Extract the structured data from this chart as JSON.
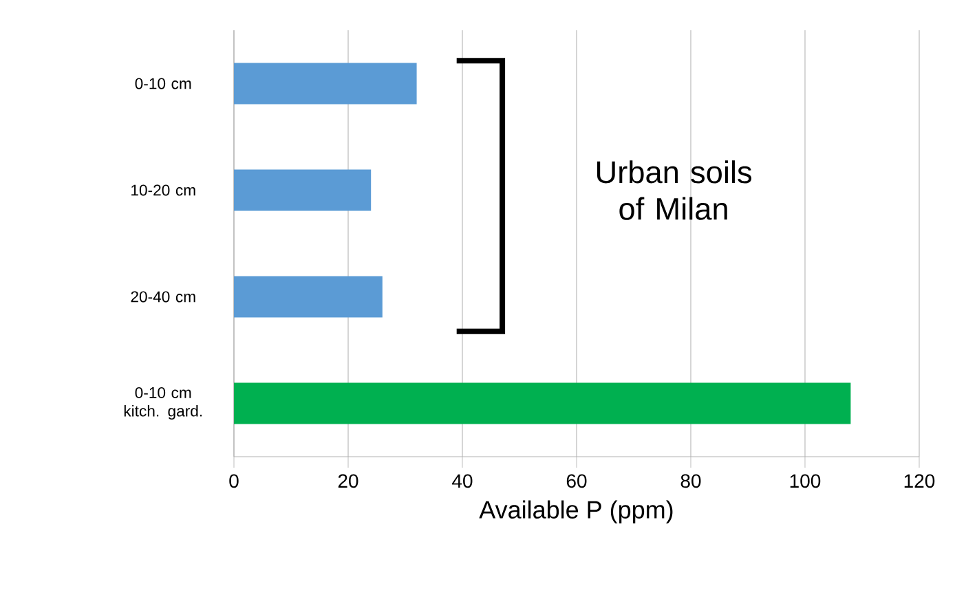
{
  "chart_data": {
    "type": "bar",
    "orientation": "horizontal",
    "categories": [
      "0-10 cm",
      "10-20 cm",
      "20-40 cm",
      "0-10 cm kitch. gard."
    ],
    "values": [
      32,
      24,
      26,
      108
    ],
    "colors": [
      "#5b9bd5",
      "#5b9bd5",
      "#5b9bd5",
      "#00b050"
    ],
    "xlabel": "Available P (ppm)",
    "xlim": [
      0,
      120
    ],
    "xticks": [
      0,
      20,
      40,
      60,
      80,
      100,
      120
    ],
    "grid": "x",
    "annotations": [
      "Urban soils of Milan"
    ]
  }
}
